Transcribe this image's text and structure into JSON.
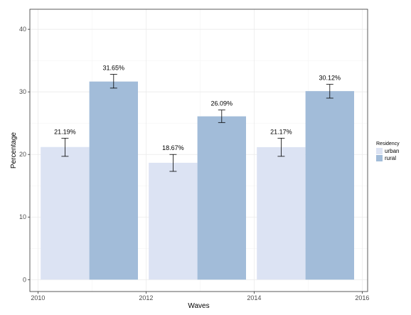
{
  "chart_data": {
    "type": "bar",
    "xlabel": "Waves",
    "ylabel": "Percentage",
    "xlim": [
      2009.85,
      2016.1
    ],
    "ylim": [
      -1.9,
      43.2
    ],
    "x_ticks": [
      2010,
      2012,
      2014,
      2016
    ],
    "y_ticks": [
      0,
      10,
      20,
      30,
      40
    ],
    "grid": true,
    "legend": {
      "title": "Residency",
      "placement": "right"
    },
    "series": [
      {
        "name": "urban",
        "color": "#dce3f3",
        "values": [
          {
            "x": 2010.5,
            "y": 21.19,
            "err_low": 19.7,
            "err_high": 22.6,
            "label": "21.19%"
          },
          {
            "x": 2012.5,
            "y": 18.67,
            "err_low": 17.3,
            "err_high": 20.0,
            "label": "18.67%"
          },
          {
            "x": 2014.5,
            "y": 21.17,
            "err_low": 19.7,
            "err_high": 22.6,
            "label": "21.17%"
          }
        ]
      },
      {
        "name": "rural",
        "color": "#a2bcd9",
        "values": [
          {
            "x": 2011.4,
            "y": 31.65,
            "err_low": 30.6,
            "err_high": 32.8,
            "label": "31.65%"
          },
          {
            "x": 2013.4,
            "y": 26.09,
            "err_low": 25.1,
            "err_high": 27.1,
            "label": "26.09%"
          },
          {
            "x": 2015.4,
            "y": 30.12,
            "err_low": 29.0,
            "err_high": 31.2,
            "label": "30.12%"
          }
        ]
      }
    ],
    "bar_width": 0.9
  }
}
